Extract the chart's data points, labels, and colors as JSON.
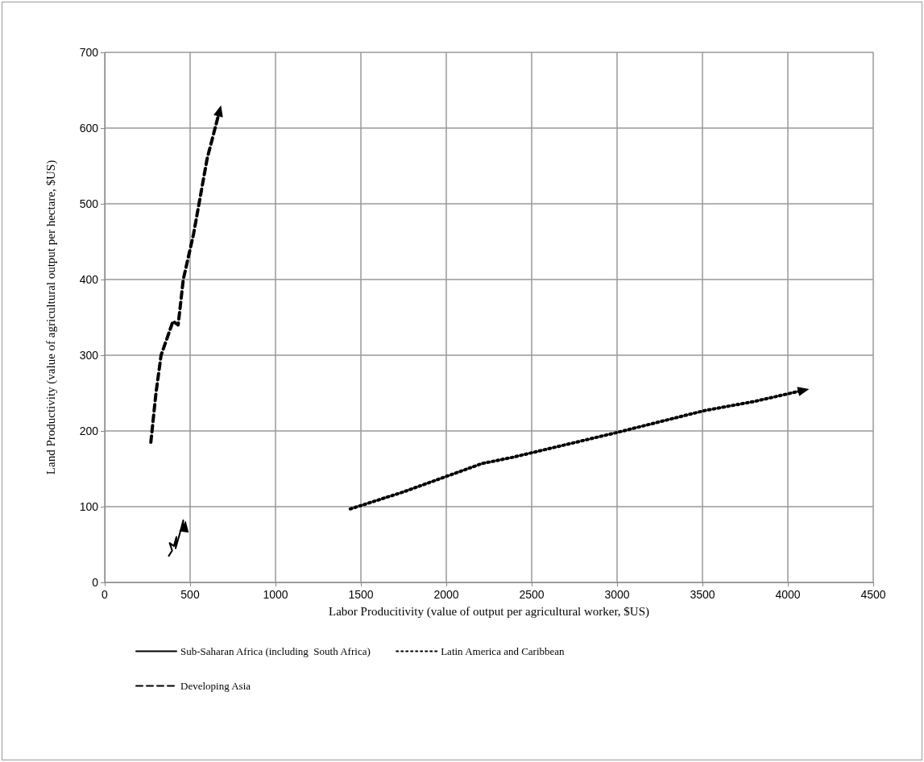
{
  "chart_data": {
    "type": "line",
    "xlabel": "Labor Producitivity (value of output per agricultural worker, $US)",
    "ylabel": "Land Productivity (value of agricultural output per hectare, $US)",
    "xlim": [
      0,
      4500
    ],
    "xticks": [
      0,
      500,
      1000,
      1500,
      2000,
      2500,
      3000,
      3500,
      4000,
      4500
    ],
    "ylim": [
      0,
      700
    ],
    "yticks": [
      0,
      100,
      200,
      300,
      400,
      500,
      600,
      700
    ],
    "grid": true,
    "legend": "bottom",
    "marker": "none",
    "series": [
      {
        "name": "Sub-Saharan Africa (including  South Africa)",
        "color": "#000000",
        "line_style": "solid",
        "x": [
          375,
          395,
          380,
          405,
          420,
          415,
          440,
          460,
          455,
          465,
          470
        ],
        "values": [
          35,
          42,
          52,
          48,
          60,
          45,
          65,
          82,
          70,
          68,
          75
        ]
      },
      {
        "name": "Latin America and Caribbean",
        "color": "#000000",
        "line_style": "dotted",
        "x": [
          1438,
          1743,
          2210,
          2385,
          3000,
          3514,
          3805,
          4097
        ],
        "values": [
          97,
          119,
          157,
          165,
          198,
          227,
          239,
          254
        ]
      },
      {
        "name": "Developing Asia",
        "color": "#000000",
        "line_style": "dashed",
        "x": [
          270,
          300,
          330,
          400,
          430,
          460,
          520,
          600,
          674
        ],
        "values": [
          185,
          250,
          300,
          345,
          340,
          400,
          460,
          560,
          624
        ]
      }
    ]
  }
}
